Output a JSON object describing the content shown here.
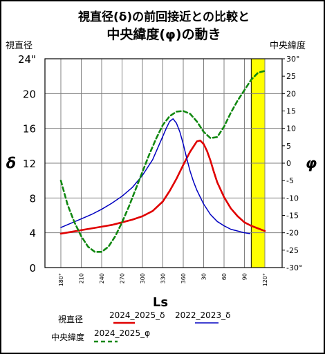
{
  "title_line1": "視直径(δ)の前回接近との比較と",
  "title_line2": "中央緯度(φ)の動き",
  "left_axis_caption": "視直径",
  "right_axis_caption": "中央緯度",
  "legend": {
    "group_diameter": "視直径",
    "group_latitude": "中央緯度",
    "series_2024_delta": "2024_2025_δ",
    "series_2022_delta": "2022_2023_δ",
    "series_2024_phi": "2024_2025_φ"
  },
  "colors": {
    "series_2024_delta": "#e00000",
    "series_2022_delta": "#0000c0",
    "series_2024_phi": "#118811",
    "highlight": "#ffff00"
  },
  "chart_data": {
    "type": "line",
    "title": "視直径(δ)の前回接近との比較と中央緯度(φ)の動き",
    "xlabel": "Ls",
    "ylabel_left": "δ",
    "ylabel_right": "φ",
    "ylim_left": [
      0,
      24
    ],
    "ylim_right": [
      -30,
      30
    ],
    "x_ticks": [
      "180°",
      "210",
      "240",
      "270",
      "300",
      "330",
      "360",
      "30",
      "60",
      "90",
      "120°"
    ],
    "y_ticks_left": [
      "0",
      "4",
      "8",
      "12",
      "16",
      "20",
      "24\""
    ],
    "y_ticks_right": [
      "-30°",
      "-25",
      "-20",
      "-15",
      "-10",
      "-5",
      "0",
      "5",
      "10",
      "15",
      "20",
      "25",
      "30°"
    ],
    "grid": true,
    "highlight_band": [
      100,
      120
    ],
    "series": [
      {
        "name": "2024_2025_δ",
        "axis": "left",
        "x": [
          180,
          195,
          210,
          225,
          240,
          255,
          270,
          285,
          300,
          315,
          330,
          340,
          350,
          360,
          370,
          380,
          385,
          390,
          395,
          400,
          405,
          410,
          420,
          430,
          440,
          450,
          460,
          470,
          480
        ],
        "y": [
          3.9,
          4.1,
          4.3,
          4.5,
          4.7,
          4.9,
          5.2,
          5.5,
          5.9,
          6.5,
          7.6,
          8.8,
          10.2,
          11.8,
          13.3,
          14.5,
          14.6,
          14.2,
          13.4,
          12.3,
          11.0,
          9.8,
          8.1,
          6.8,
          5.9,
          5.2,
          4.8,
          4.5,
          4.2
        ]
      },
      {
        "name": "2022_2023_δ",
        "axis": "left",
        "x": [
          180,
          195,
          210,
          225,
          240,
          255,
          270,
          285,
          300,
          315,
          325,
          335,
          340,
          345,
          350,
          355,
          360,
          365,
          370,
          375,
          380,
          390,
          400,
          410,
          420,
          430,
          440,
          450,
          458
        ],
        "y": [
          4.6,
          5.1,
          5.6,
          6.1,
          6.7,
          7.4,
          8.2,
          9.2,
          10.6,
          12.4,
          14.2,
          16.0,
          16.8,
          17.1,
          16.6,
          15.6,
          14.2,
          12.6,
          11.1,
          9.9,
          8.9,
          7.3,
          6.1,
          5.3,
          4.8,
          4.4,
          4.2,
          4.0,
          3.9
        ]
      },
      {
        "name": "2024_2025_φ",
        "axis": "right",
        "dash": true,
        "x": [
          180,
          190,
          200,
          210,
          220,
          230,
          240,
          250,
          260,
          270,
          280,
          290,
          300,
          310,
          320,
          330,
          340,
          350,
          360,
          370,
          380,
          390,
          400,
          410,
          420,
          430,
          440,
          450,
          460,
          470,
          480
        ],
        "y": [
          -5,
          -12,
          -17,
          -21,
          -24,
          -25.5,
          -25.5,
          -24,
          -21,
          -17,
          -12.5,
          -7.5,
          -2.5,
          2.5,
          7,
          11,
          13.5,
          14.8,
          15,
          14.2,
          12,
          9,
          7.2,
          7.5,
          10.5,
          14.5,
          18,
          21,
          24,
          26,
          26.5
        ]
      }
    ]
  }
}
